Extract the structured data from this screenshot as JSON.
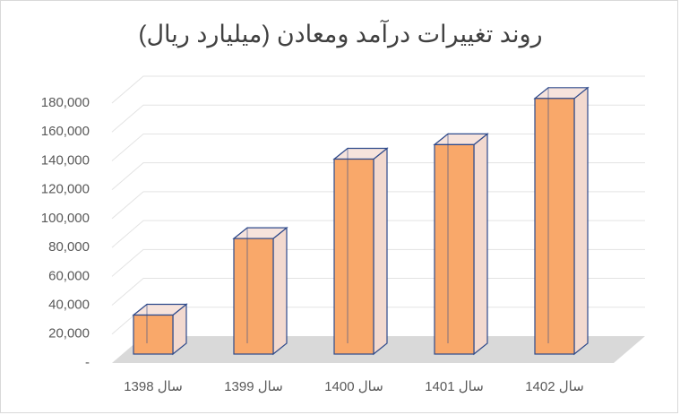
{
  "chart_data": {
    "type": "bar3d",
    "title": "روند تغییرات درآمد ومعادن (میلیارد ریال)",
    "categories": [
      "سال 1398",
      "سال 1399",
      "سال 1400",
      "سال 1401",
      "سال 1402"
    ],
    "values": [
      27000,
      80000,
      135000,
      145000,
      177000
    ],
    "color": "#f9a86a",
    "ylim": [
      0,
      180000
    ],
    "yticks": [
      {
        "value": 0,
        "label": "-"
      },
      {
        "value": 20000,
        "label": "20,000"
      },
      {
        "value": 40000,
        "label": "40,000"
      },
      {
        "value": 60000,
        "label": "60,000"
      },
      {
        "value": 80000,
        "label": "80,000"
      },
      {
        "value": 100000,
        "label": "100,000"
      },
      {
        "value": 120000,
        "label": "120,000"
      },
      {
        "value": 140000,
        "label": "140,000"
      },
      {
        "value": 160000,
        "label": "160,000"
      },
      {
        "value": 180000,
        "label": "180,000"
      }
    ],
    "grid": true
  }
}
